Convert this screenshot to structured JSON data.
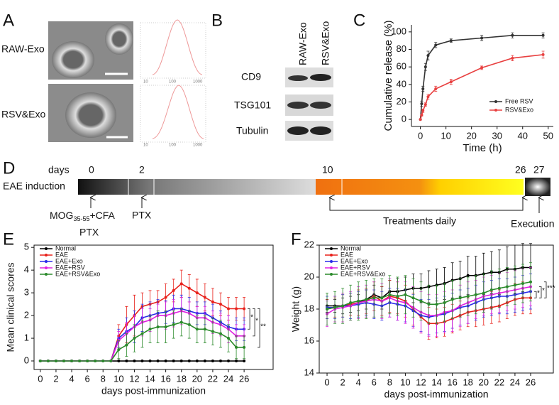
{
  "panels": {
    "a": "A",
    "b": "B",
    "c": "C",
    "d": "D",
    "e": "E",
    "f": "F"
  },
  "tem": {
    "labels": [
      "RAW-Exo",
      "RSV&Exo"
    ],
    "size_ticks": [
      "10",
      "100",
      "1000"
    ]
  },
  "blot": {
    "columns": [
      "RAW-Exo",
      "RSV&Exo"
    ],
    "rows": [
      "CD9",
      "TSG101",
      "Tubulin"
    ]
  },
  "timeline": {
    "days_label": "days",
    "days": [
      "0",
      "2",
      "10",
      "26",
      "27"
    ],
    "row_label": "EAE induction",
    "mog": {
      "name": "MOG",
      "sub": "35-55",
      "rest": "+CFA"
    },
    "ptx": [
      "PTX",
      "PTX"
    ],
    "treatment": "Treatments daily",
    "execution": "Execution"
  },
  "chart_data": [
    {
      "type": "line",
      "x_label": "Time (h)",
      "y_label": "Cumulative release (%)",
      "x": [
        0,
        0.5,
        1,
        2,
        3,
        6,
        12,
        24,
        36,
        48
      ],
      "xlim": [
        -3.5,
        52
      ],
      "xticks": [
        0,
        10,
        20,
        30,
        40,
        50
      ],
      "ylim": [
        -8,
        108
      ],
      "yticks": [
        0,
        20,
        40,
        60,
        80,
        100
      ],
      "legend": "lower right",
      "series": [
        {
          "name": "Free RSV",
          "color": "#333333",
          "values": [
            0,
            18,
            35,
            60,
            73,
            85,
            90,
            93,
            96,
            96
          ],
          "errors": [
            0,
            3,
            3,
            4,
            5,
            3,
            2,
            3,
            3,
            3
          ]
        },
        {
          "name": "RSV&Exo",
          "color": "#e84040",
          "values": [
            0,
            5,
            10,
            17,
            26,
            35,
            43,
            59,
            70,
            74
          ],
          "errors": [
            0,
            1,
            2,
            2,
            3,
            3,
            3,
            2,
            3,
            4
          ]
        }
      ]
    },
    {
      "type": "line",
      "x_label": "days post-immunization",
      "y_label": "Mean clinical scores",
      "x": [
        0,
        1,
        2,
        3,
        4,
        5,
        6,
        7,
        8,
        9,
        10,
        11,
        12,
        13,
        14,
        15,
        16,
        17,
        18,
        19,
        20,
        21,
        22,
        23,
        24,
        25,
        26
      ],
      "xlim": [
        -0.8,
        29.7
      ],
      "xticks": [
        0,
        2,
        4,
        6,
        8,
        10,
        12,
        14,
        16,
        18,
        20,
        22,
        24,
        26
      ],
      "ylim": [
        -0.375,
        5.1
      ],
      "yticks": [
        0,
        1,
        2,
        3,
        4,
        5
      ],
      "legend": "upper left",
      "significance": [
        "*",
        "*",
        "**"
      ],
      "series": [
        {
          "name": "Normal",
          "color": "#000000",
          "values": [
            0,
            0,
            0,
            0,
            0,
            0,
            0,
            0,
            0,
            0,
            0,
            0,
            0,
            0,
            0,
            0,
            0,
            0,
            0,
            0,
            0,
            0,
            0,
            0,
            0,
            0,
            0
          ]
        },
        {
          "name": "EAE",
          "color": "#e8201a",
          "values": [
            0,
            0,
            0,
            0,
            0,
            0,
            0,
            0,
            0,
            0,
            1.1,
            1.6,
            2.0,
            2.4,
            2.5,
            2.6,
            2.8,
            3.1,
            3.4,
            3.2,
            3.0,
            2.8,
            2.6,
            2.5,
            2.3,
            2.3,
            2.3
          ],
          "errors": [
            0,
            0,
            0,
            0,
            0,
            0,
            0,
            0,
            0,
            0,
            0.5,
            0.8,
            0.9,
            0.6,
            0.6,
            0.5,
            0.6,
            0.5,
            0.6,
            0.6,
            0.6,
            0.6,
            0.6,
            0.5,
            0.5,
            0.5,
            0.5
          ]
        },
        {
          "name": "EAE+Exo",
          "color": "#2a2ae8",
          "values": [
            0,
            0,
            0,
            0,
            0,
            0,
            0,
            0,
            0,
            0,
            1.0,
            1.3,
            1.5,
            1.9,
            2.0,
            2.1,
            2.15,
            2.3,
            2.3,
            2.2,
            2.1,
            2.1,
            1.9,
            1.7,
            1.5,
            1.4,
            1.4
          ],
          "errors": [
            0,
            0,
            0,
            0,
            0,
            0,
            0,
            0,
            0,
            0,
            0.4,
            0.6,
            0.7,
            0.6,
            0.6,
            0.6,
            0.5,
            0.6,
            0.6,
            0.6,
            0.5,
            0.5,
            0.6,
            0.5,
            0.5,
            0.5,
            0.5
          ]
        },
        {
          "name": "EAE+RSV",
          "color": "#e020e0",
          "values": [
            0,
            0,
            0,
            0,
            0,
            0,
            0,
            0,
            0,
            0,
            0.9,
            1.2,
            1.5,
            1.7,
            1.8,
            2.0,
            2.0,
            2.1,
            2.2,
            2.1,
            1.9,
            1.9,
            1.7,
            1.6,
            1.4,
            1.1,
            1.1
          ],
          "errors": [
            0,
            0,
            0,
            0,
            0,
            0,
            0,
            0,
            0,
            0,
            0.4,
            0.5,
            0.5,
            0.6,
            0.5,
            0.5,
            0.6,
            0.6,
            0.6,
            0.5,
            0.5,
            0.5,
            0.5,
            0.5,
            0.6,
            0.5,
            0.5
          ]
        },
        {
          "name": "EAE+RSV&Exo",
          "color": "#2a8a2a",
          "values": [
            0,
            0,
            0,
            0,
            0,
            0,
            0,
            0,
            0,
            0,
            0.5,
            0.7,
            1.0,
            1.2,
            1.4,
            1.5,
            1.5,
            1.6,
            1.7,
            1.6,
            1.4,
            1.4,
            1.3,
            1.2,
            1.0,
            0.6,
            0.6
          ],
          "errors": [
            0,
            0,
            0,
            0,
            0,
            0,
            0,
            0,
            0,
            0,
            0.4,
            0.5,
            0.6,
            0.6,
            0.6,
            0.7,
            0.7,
            0.6,
            0.6,
            0.6,
            0.6,
            0.6,
            0.6,
            0.6,
            0.6,
            0.5,
            0.5
          ]
        }
      ]
    },
    {
      "type": "line",
      "x_label": "days post-immunization",
      "y_label": "Weight (g)",
      "x": [
        0,
        1,
        2,
        3,
        4,
        5,
        6,
        7,
        8,
        9,
        10,
        11,
        12,
        13,
        14,
        15,
        16,
        17,
        18,
        19,
        20,
        21,
        22,
        23,
        24,
        25,
        26
      ],
      "xlim": [
        -1,
        28.9
      ],
      "xticks": [
        0,
        2,
        4,
        6,
        8,
        10,
        12,
        14,
        16,
        18,
        20,
        22,
        24,
        26
      ],
      "ylim": [
        14,
        22
      ],
      "yticks": [
        14,
        16,
        18,
        20,
        22
      ],
      "legend": "upper left",
      "significance": [
        "*",
        "*",
        "***"
      ],
      "series": [
        {
          "name": "Normal",
          "color": "#000000",
          "values": [
            18.2,
            18.2,
            18.2,
            18.3,
            18.4,
            18.6,
            18.9,
            18.7,
            19.1,
            19.1,
            19.2,
            19.3,
            19.3,
            19.4,
            19.5,
            19.6,
            19.8,
            19.9,
            20.1,
            20.1,
            20.2,
            20.3,
            20.3,
            20.5,
            20.5,
            20.6,
            20.6
          ],
          "errors": [
            0.4,
            0.4,
            0.5,
            0.5,
            0.5,
            0.6,
            0.6,
            0.7,
            0.7,
            0.8,
            0.8,
            0.9,
            0.9,
            1.0,
            1.0,
            1.0,
            1.1,
            1.1,
            1.2,
            1.2,
            1.3,
            1.3,
            1.4,
            1.4,
            1.5,
            1.5,
            1.5
          ]
        },
        {
          "name": "EAE",
          "color": "#e8201a",
          "values": [
            18.0,
            18.1,
            18.2,
            18.3,
            18.4,
            18.5,
            18.8,
            18.5,
            18.8,
            18.7,
            18.5,
            18.0,
            17.5,
            17.1,
            17.1,
            17.2,
            17.4,
            17.6,
            17.8,
            17.9,
            18.0,
            18.1,
            18.2,
            18.4,
            18.6,
            18.7,
            18.7
          ],
          "errors": [
            0.6,
            0.6,
            0.7,
            0.7,
            0.8,
            0.8,
            0.9,
            0.9,
            1.0,
            1.0,
            1.0,
            1.0,
            1.0,
            1.0,
            0.9,
            0.9,
            0.9,
            0.9,
            0.9,
            1.0,
            1.0,
            1.0,
            1.0,
            1.0,
            1.0,
            1.0,
            1.0
          ]
        },
        {
          "name": "EAE+Exo",
          "color": "#2a2ae8",
          "values": [
            18.1,
            18.1,
            18.2,
            18.2,
            18.3,
            18.4,
            18.3,
            18.2,
            18.4,
            18.3,
            18.2,
            17.9,
            17.6,
            17.5,
            17.6,
            17.7,
            17.9,
            18.1,
            18.2,
            18.4,
            18.6,
            18.7,
            18.8,
            18.8,
            18.9,
            19.0,
            19.1
          ],
          "errors": [
            0.7,
            0.7,
            0.7,
            0.8,
            0.8,
            0.8,
            0.9,
            0.9,
            0.9,
            1.0,
            1.0,
            1.0,
            1.0,
            1.1,
            1.1,
            1.1,
            1.1,
            1.1,
            1.1,
            1.1,
            1.1,
            1.1,
            1.1,
            1.1,
            1.1,
            1.1,
            1.1
          ]
        },
        {
          "name": "EAE+RSV",
          "color": "#e020e0",
          "values": [
            17.7,
            18.0,
            18.1,
            18.2,
            18.4,
            18.5,
            18.6,
            18.5,
            18.7,
            18.5,
            18.4,
            18.1,
            17.8,
            17.6,
            17.6,
            17.8,
            17.9,
            18.2,
            18.4,
            18.6,
            18.8,
            18.9,
            19.0,
            19.1,
            19.2,
            19.3,
            19.4
          ],
          "errors": [
            0.8,
            0.8,
            0.9,
            0.9,
            1.0,
            1.0,
            1.1,
            1.1,
            1.2,
            1.2,
            1.3,
            1.3,
            1.3,
            1.3,
            1.3,
            1.3,
            1.3,
            1.3,
            1.3,
            1.2,
            1.2,
            1.2,
            1.2,
            1.2,
            1.2,
            1.2,
            1.2
          ]
        },
        {
          "name": "EAE+RSV&Exo",
          "color": "#2a8a2a",
          "values": [
            18.0,
            18.1,
            18.2,
            18.4,
            18.5,
            18.6,
            18.7,
            18.7,
            18.9,
            18.8,
            18.9,
            18.7,
            18.5,
            18.3,
            18.3,
            18.4,
            18.6,
            18.7,
            18.8,
            18.9,
            19.0,
            19.2,
            19.3,
            19.4,
            19.5,
            19.6,
            19.7
          ],
          "errors": [
            1.0,
            1.0,
            1.1,
            1.1,
            1.2,
            1.2,
            1.2,
            1.2,
            1.2,
            1.2,
            1.2,
            1.2,
            1.2,
            1.2,
            1.2,
            1.2,
            1.2,
            1.2,
            1.2,
            1.2,
            1.2,
            1.2,
            1.2,
            1.2,
            1.2,
            1.2,
            1.2
          ]
        }
      ]
    }
  ]
}
